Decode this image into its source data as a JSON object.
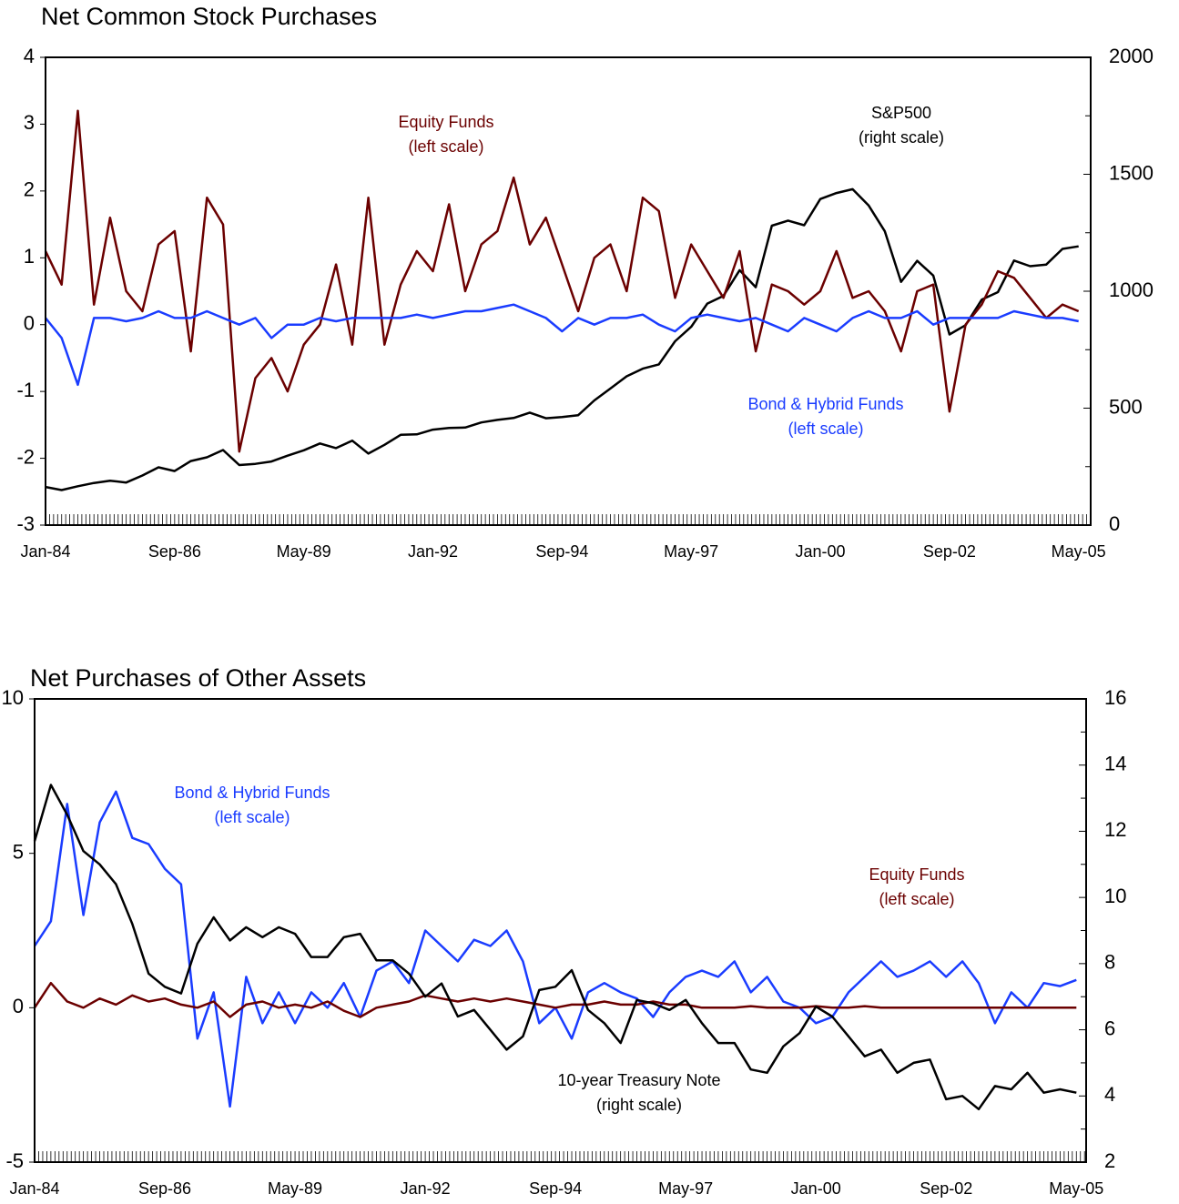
{
  "chart_data": [
    {
      "type": "line",
      "title": "Net Common Stock Purchases",
      "categories": [
        "Jan-84",
        null,
        null,
        null,
        null,
        null,
        null,
        null,
        "Sep-86",
        null,
        null,
        null,
        null,
        null,
        null,
        null,
        "May-89",
        null,
        null,
        null,
        null,
        null,
        null,
        null,
        "Jan-92",
        null,
        null,
        null,
        null,
        null,
        null,
        null,
        "Sep-94",
        null,
        null,
        null,
        null,
        null,
        null,
        null,
        "May-97",
        null,
        null,
        null,
        null,
        null,
        null,
        null,
        "Jan-00",
        null,
        null,
        null,
        null,
        null,
        null,
        null,
        "Sep-02",
        null,
        null,
        null,
        null,
        null,
        null,
        null,
        "May-05"
      ],
      "ylim": [
        -3,
        4
      ],
      "yticks": [
        -3,
        -2,
        -1,
        0,
        1,
        2,
        3,
        4
      ],
      "y2lim": [
        0,
        2000
      ],
      "y2ticks": [
        0,
        500,
        1000,
        1500,
        2000
      ],
      "series": [
        {
          "name": "S&P500",
          "annotation": "(right scale)",
          "color": "#000000",
          "axis": "y2",
          "values": [
            163,
            150,
            166,
            180,
            190,
            182,
            212,
            247,
            231,
            274,
            290,
            321,
            257,
            262,
            272,
            297,
            320,
            349,
            329,
            361,
            306,
            343,
            386,
            388,
            408,
            415,
            417,
            439,
            450,
            458,
            481,
            457,
            462,
            470,
            533,
            584,
            636,
            669,
            687,
            786,
            848,
            947,
            980,
            1090,
            1017,
            1280,
            1302,
            1282,
            1394,
            1420,
            1436,
            1366,
            1256,
            1040,
            1130,
            1067,
            815,
            855,
            964,
            996,
            1131,
            1107,
            1114,
            1181,
            1192
          ]
        },
        {
          "name": "Equity Funds",
          "annotation": "(left scale)",
          "color": "#6b0000",
          "values": [
            1.1,
            0.6,
            3.2,
            0.3,
            1.6,
            0.5,
            0.2,
            1.2,
            1.4,
            -0.4,
            1.9,
            1.5,
            -1.9,
            -0.8,
            -0.5,
            -1.0,
            -0.3,
            0.0,
            0.9,
            -0.3,
            1.9,
            -0.3,
            0.6,
            1.1,
            0.8,
            1.8,
            0.5,
            1.2,
            1.4,
            2.2,
            1.2,
            1.6,
            0.9,
            0.2,
            1.0,
            1.2,
            0.5,
            1.9,
            1.7,
            0.4,
            1.2,
            0.8,
            0.4,
            1.1,
            -0.4,
            0.6,
            0.5,
            0.3,
            0.5,
            1.1,
            0.4,
            0.5,
            0.2,
            -0.4,
            0.5,
            0.6,
            -1.3,
            0.0,
            0.3,
            0.8,
            0.7,
            0.4,
            0.1,
            0.3,
            0.2
          ]
        },
        {
          "name": "Bond & Hybrid Funds",
          "annotation": "(left scale)",
          "color": "#1a3cff",
          "values": [
            0.1,
            -0.2,
            -0.9,
            0.1,
            0.1,
            0.05,
            0.1,
            0.2,
            0.1,
            0.1,
            0.2,
            0.1,
            0.0,
            0.1,
            -0.2,
            0.0,
            0.0,
            0.1,
            0.05,
            0.1,
            0.1,
            0.1,
            0.1,
            0.15,
            0.1,
            0.15,
            0.2,
            0.2,
            0.25,
            0.3,
            0.2,
            0.1,
            -0.1,
            0.1,
            0.0,
            0.1,
            0.1,
            0.15,
            0.0,
            -0.1,
            0.1,
            0.15,
            0.1,
            0.05,
            0.1,
            0.0,
            -0.1,
            0.1,
            0.0,
            -0.1,
            0.1,
            0.2,
            0.1,
            0.1,
            0.2,
            0.0,
            0.1,
            0.1,
            0.1,
            0.1,
            0.2,
            0.15,
            0.1,
            0.1,
            0.05
          ]
        }
      ]
    },
    {
      "type": "line",
      "title": "Net Purchases of Other Assets",
      "categories": [
        "Jan-84",
        null,
        null,
        null,
        null,
        null,
        null,
        null,
        "Sep-86",
        null,
        null,
        null,
        null,
        null,
        null,
        null,
        "May-89",
        null,
        null,
        null,
        null,
        null,
        null,
        null,
        "Jan-92",
        null,
        null,
        null,
        null,
        null,
        null,
        null,
        "Sep-94",
        null,
        null,
        null,
        null,
        null,
        null,
        null,
        "May-97",
        null,
        null,
        null,
        null,
        null,
        null,
        null,
        "Jan-00",
        null,
        null,
        null,
        null,
        null,
        null,
        null,
        "Sep-02",
        null,
        null,
        null,
        null,
        null,
        null,
        null,
        "May-05"
      ],
      "ylim": [
        -5,
        10
      ],
      "yticks": [
        -5,
        0,
        5,
        10
      ],
      "y2lim": [
        2,
        16
      ],
      "y2ticks": [
        2,
        4,
        6,
        8,
        10,
        12,
        14,
        16
      ],
      "series": [
        {
          "name": "Bond & Hybrid Funds",
          "annotation": "(left scale)",
          "color": "#1a3cff",
          "values": [
            2.0,
            2.8,
            6.6,
            3.0,
            6.0,
            7.0,
            5.5,
            5.3,
            4.5,
            4.0,
            -1.0,
            0.5,
            -3.2,
            1.0,
            -0.5,
            0.5,
            -0.5,
            0.5,
            0.0,
            0.8,
            -0.3,
            1.2,
            1.5,
            0.8,
            2.5,
            2.0,
            1.5,
            2.2,
            2.0,
            2.5,
            1.5,
            -0.5,
            0.0,
            -1.0,
            0.5,
            0.8,
            0.5,
            0.3,
            -0.3,
            0.5,
            1.0,
            1.2,
            1.0,
            1.5,
            0.5,
            1.0,
            0.2,
            0.0,
            -0.5,
            -0.3,
            0.5,
            1.0,
            1.5,
            1.0,
            1.2,
            1.5,
            1.0,
            1.5,
            0.8,
            -0.5,
            0.5,
            0.0,
            0.8,
            0.7,
            0.9
          ]
        },
        {
          "name": "Equity Funds",
          "annotation": "(left scale)",
          "color": "#6b0000",
          "values": [
            0,
            0.8,
            0.2,
            0,
            0.3,
            0.1,
            0.4,
            0.2,
            0.3,
            0.1,
            0,
            0.2,
            -0.3,
            0.1,
            0.2,
            0,
            0.1,
            0,
            0.2,
            -0.1,
            -0.3,
            0,
            0.1,
            0.2,
            0.4,
            0.3,
            0.2,
            0.3,
            0.2,
            0.3,
            0.2,
            0.1,
            0,
            0.1,
            0.1,
            0.2,
            0.1,
            0.1,
            0.2,
            0.1,
            0.1,
            0,
            0,
            0,
            0.05,
            0,
            0,
            0,
            0.05,
            0,
            0,
            0.05,
            0,
            0,
            0,
            0,
            0,
            0,
            0,
            0,
            0,
            0,
            0,
            0,
            0
          ]
        },
        {
          "name": "10-year Treasury Note",
          "annotation": "(right scale)",
          "color": "#000000",
          "axis": "y2",
          "values": [
            11.7,
            13.4,
            12.5,
            11.4,
            11.0,
            10.4,
            9.2,
            7.7,
            7.3,
            7.1,
            8.6,
            9.4,
            8.7,
            9.1,
            8.8,
            9.1,
            8.9,
            8.2,
            8.2,
            8.8,
            8.9,
            8.1,
            8.1,
            7.7,
            7.0,
            7.4,
            6.4,
            6.6,
            6.0,
            5.4,
            5.8,
            7.2,
            7.3,
            7.8,
            6.6,
            6.2,
            5.6,
            6.9,
            6.8,
            6.6,
            6.9,
            6.2,
            5.6,
            5.6,
            4.8,
            4.7,
            5.5,
            5.9,
            6.7,
            6.4,
            5.8,
            5.2,
            5.4,
            4.7,
            5.0,
            5.1,
            3.9,
            4.0,
            3.6,
            4.3,
            4.2,
            4.7,
            4.1,
            4.2,
            4.1
          ]
        }
      ]
    }
  ]
}
